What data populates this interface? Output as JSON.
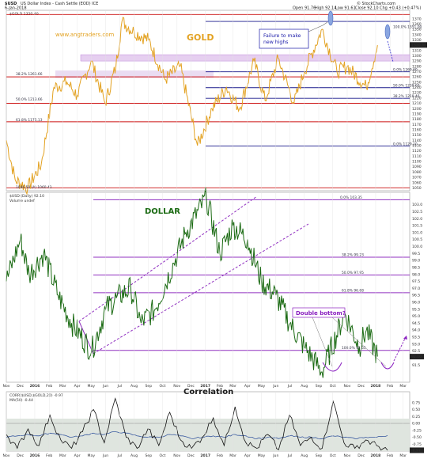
{
  "header": {
    "symbol": "$USD",
    "description": "US Dollar Index - Cash Settle (EOD) ICE",
    "date": "6-Jan-2018",
    "source": "© StockCharts.com",
    "open": "Open 91.76",
    "high": "High 92.14",
    "low": "Low 91.61",
    "close": "Close 92.10",
    "chg": "Chg +0.43 (+0.47%)",
    "gold_legend": "$GOLD 1320.40",
    "usd_legend": "$USD (Daily) 92.10",
    "volume_legend": "Volume undef",
    "corr_legend": "CORR($USD,$GOLD,20) -0.97",
    "ma_legend": "MA(50) -0.44",
    "gold_low_label": "1046.50 (A) 1060.41"
  },
  "colors": {
    "gold": "#e3a222",
    "dollar": "#1a6a12",
    "fib": "#9030c0",
    "resistance": "#cc1111",
    "support": "#1a1a8c",
    "watermark": "#e3a222",
    "corr_line": "#111111",
    "ma_line": "#3a5aa0",
    "callout": "#1a1aa8",
    "double_bottom": "#8a20c0",
    "corr_bg": "#dfe5df"
  },
  "annotations": {
    "watermark": "www.angtraders.com",
    "gold_title": "GOLD",
    "dollar_title": "DOLLAR",
    "corr_title": "Correlation",
    "failure": "Failure to make new highs",
    "double_bottom": "Double bottom?"
  },
  "chart_data": [
    {
      "type": "line",
      "panel": "gold",
      "title": "GOLD",
      "series": [
        {
          "name": "$GOLD",
          "x": [
            "2015-11-01",
            "2015-11-20",
            "2015-12-17",
            "2016-01-15",
            "2016-02-11",
            "2016-03-10",
            "2016-04-01",
            "2016-05-01",
            "2016-05-31",
            "2016-06-23",
            "2016-07-06",
            "2016-08-01",
            "2016-09-01",
            "2016-10-06",
            "2016-11-08",
            "2016-12-15",
            "2017-01-15",
            "2017-02-15",
            "2017-03-15",
            "2017-04-15",
            "2017-05-09",
            "2017-06-06",
            "2017-07-10",
            "2017-08-01",
            "2017-09-08",
            "2017-10-10",
            "2017-11-01",
            "2017-12-12",
            "2018-01-05"
          ],
          "values": [
            1140,
            1065,
            1050,
            1095,
            1240,
            1250,
            1225,
            1290,
            1210,
            1280,
            1365,
            1345,
            1330,
            1255,
            1280,
            1130,
            1200,
            1240,
            1200,
            1290,
            1215,
            1295,
            1210,
            1270,
            1350,
            1270,
            1280,
            1240,
            1320
          ]
        }
      ],
      "ylim": [
        1046,
        1380
      ],
      "fib_levels": [
        {
          "label": "100.0% 1351.00",
          "value": 1351
        },
        {
          "label": "0.0% 1269.60",
          "value": 1269.6
        },
        {
          "label": "50.0% 1239.60",
          "value": 1239.6
        },
        {
          "label": "38.2% 1219.46",
          "value": 1219.46
        },
        {
          "label": "0.0% 1129.10",
          "value": 1129.1
        }
      ],
      "left_fib_labels": [
        {
          "label": "38.2% 1261.66",
          "value": 1261.66
        },
        {
          "label": "50.0% 1213.66",
          "value": 1213.66
        },
        {
          "label": "61.8% 1175.13",
          "value": 1175.13
        }
      ],
      "red_lines": [
        1378,
        1260,
        1210,
        1175,
        1050
      ],
      "blue_lines": [
        1365,
        1269.6,
        1239.6,
        1219.46,
        1129.1
      ],
      "band": [
        1290,
        1302
      ],
      "band2": [
        1258,
        1272
      ],
      "yticks": [
        1370,
        1360,
        1350,
        1340,
        1330,
        1320,
        1310,
        1300,
        1290,
        1280,
        1270,
        1260,
        1250,
        1240,
        1230,
        1220,
        1210,
        1200,
        1190,
        1180,
        1170,
        1160,
        1150,
        1140,
        1130,
        1120,
        1110,
        1100,
        1090,
        1080,
        1070,
        1060,
        1050
      ],
      "last_value": "1320.40"
    },
    {
      "type": "line",
      "panel": "dollar",
      "title": "DOLLAR",
      "series": [
        {
          "name": "$USD",
          "x": [
            "2015-11-01",
            "2015-12-01",
            "2015-12-20",
            "2016-01-20",
            "2016-02-20",
            "2016-03-20",
            "2016-05-02",
            "2016-06-01",
            "2016-06-24",
            "2016-07-25",
            "2016-08-16",
            "2016-09-15",
            "2016-10-25",
            "2016-11-20",
            "2017-01-03",
            "2017-02-01",
            "2017-03-01",
            "2017-04-01",
            "2017-05-01",
            "2017-06-01",
            "2017-07-01",
            "2017-08-01",
            "2017-09-08",
            "2017-10-27",
            "2017-11-27",
            "2017-12-12",
            "2018-01-05"
          ],
          "values": [
            97.5,
            100.5,
            98.0,
            99.5,
            96.5,
            94.5,
            92.5,
            95.5,
            96.3,
            97.0,
            94.5,
            95.5,
            98.8,
            101.0,
            103.5,
            99.5,
            101.5,
            100.5,
            97.5,
            96.5,
            94.5,
            92.8,
            91.0,
            95.2,
            92.8,
            94.0,
            92.1
          ]
        }
      ],
      "ylim": [
        91.0,
        103.6
      ],
      "fib_levels": [
        {
          "label": "0.0% 103.35",
          "value": 103.35
        },
        {
          "label": "38.2% 99.23",
          "value": 99.23
        },
        {
          "label": "50.0% 97.95",
          "value": 97.95
        },
        {
          "label": "61.8% 96.68",
          "value": 96.68
        },
        {
          "label": "100.0% 92.55",
          "value": 92.55
        }
      ],
      "yticks": [
        103.0,
        102.5,
        102.0,
        101.5,
        101.0,
        100.5,
        100.0,
        99.5,
        99.0,
        98.5,
        98.0,
        97.5,
        97.0,
        96.5,
        96.0,
        95.5,
        95.0,
        94.5,
        94.0,
        93.5,
        93.0,
        92.5,
        92.0,
        91.5
      ],
      "last_value": "92.10"
    },
    {
      "type": "line",
      "panel": "correlation",
      "title": "Correlation",
      "series": [
        {
          "name": "CORR($USD,$GOLD,20)",
          "values": [
            -0.4,
            -0.9,
            -0.2,
            -0.8,
            0.3,
            -0.6,
            -0.9,
            -0.3,
            0.5,
            -0.7,
            0.9,
            -0.5,
            -0.9,
            -0.2,
            -0.8,
            0.4,
            -0.6,
            -0.9,
            -0.5,
            0.2,
            -0.8,
            0.6,
            -0.7,
            -0.9,
            -0.4,
            -0.95,
            0.3,
            -0.8,
            -0.5,
            -0.9,
            0.8,
            -0.7,
            -0.9,
            -0.6,
            -0.8,
            -0.97
          ]
        },
        {
          "name": "MA(50)",
          "values": [
            -0.5,
            -0.45,
            -0.4,
            -0.45,
            -0.35,
            -0.4,
            -0.5,
            -0.45,
            -0.35,
            -0.4,
            -0.3,
            -0.35,
            -0.45,
            -0.5,
            -0.5,
            -0.4,
            -0.45,
            -0.55,
            -0.5,
            -0.45,
            -0.5,
            -0.4,
            -0.45,
            -0.55,
            -0.5,
            -0.55,
            -0.45,
            -0.5,
            -0.5,
            -0.55,
            -0.45,
            -0.5,
            -0.55,
            -0.5,
            -0.5,
            -0.44
          ]
        }
      ],
      "ylim": [
        -1.0,
        1.0
      ],
      "yticks": [
        "0.75",
        "0.50",
        "0.25",
        "0.00",
        "-0.25",
        "-0.50",
        "-0.75"
      ],
      "last_value": "-0.97"
    }
  ],
  "x_axis": {
    "labels": [
      "Nov",
      "Dec",
      "2016",
      "Feb",
      "Mar",
      "Apr",
      "May",
      "Jun",
      "Jul",
      "Aug",
      "Sep",
      "Oct",
      "Nov",
      "Dec",
      "2017",
      "Feb",
      "Mar",
      "Apr",
      "May",
      "Jun",
      "Jul",
      "Aug",
      "Sep",
      "Oct",
      "Nov",
      "Dec",
      "2018",
      "Feb",
      "Mar"
    ]
  }
}
